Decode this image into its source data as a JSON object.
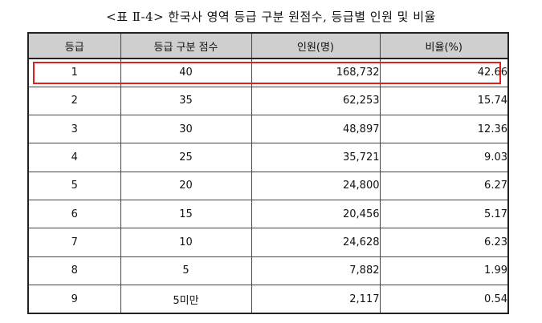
{
  "title": "<표 Ⅱ-4> 한국사 영역 등급 구분 원점수, 등급별 인원 및 비율",
  "table": {
    "headers": [
      "등급",
      "등급 구분 점수",
      "인원(명)",
      "비율(%)"
    ],
    "rows": [
      {
        "grade": "1",
        "cutoff": "40",
        "count": "168,732",
        "ratio": "42.66"
      },
      {
        "grade": "2",
        "cutoff": "35",
        "count": "62,253",
        "ratio": "15.74"
      },
      {
        "grade": "3",
        "cutoff": "30",
        "count": "48,897",
        "ratio": "12.36"
      },
      {
        "grade": "4",
        "cutoff": "25",
        "count": "35,721",
        "ratio": "9.03"
      },
      {
        "grade": "5",
        "cutoff": "20",
        "count": "24,800",
        "ratio": "6.27"
      },
      {
        "grade": "6",
        "cutoff": "15",
        "count": "20,456",
        "ratio": "5.17"
      },
      {
        "grade": "7",
        "cutoff": "10",
        "count": "24,628",
        "ratio": "6.23"
      },
      {
        "grade": "8",
        "cutoff": "5",
        "count": "7,882",
        "ratio": "1.99"
      },
      {
        "grade": "9",
        "cutoff": "5미만",
        "count": "2,117",
        "ratio": "0.54"
      }
    ]
  },
  "colors": {
    "header_background": "#cfcfcf",
    "highlight_border": "#e02020"
  },
  "highlighted_row": "1"
}
